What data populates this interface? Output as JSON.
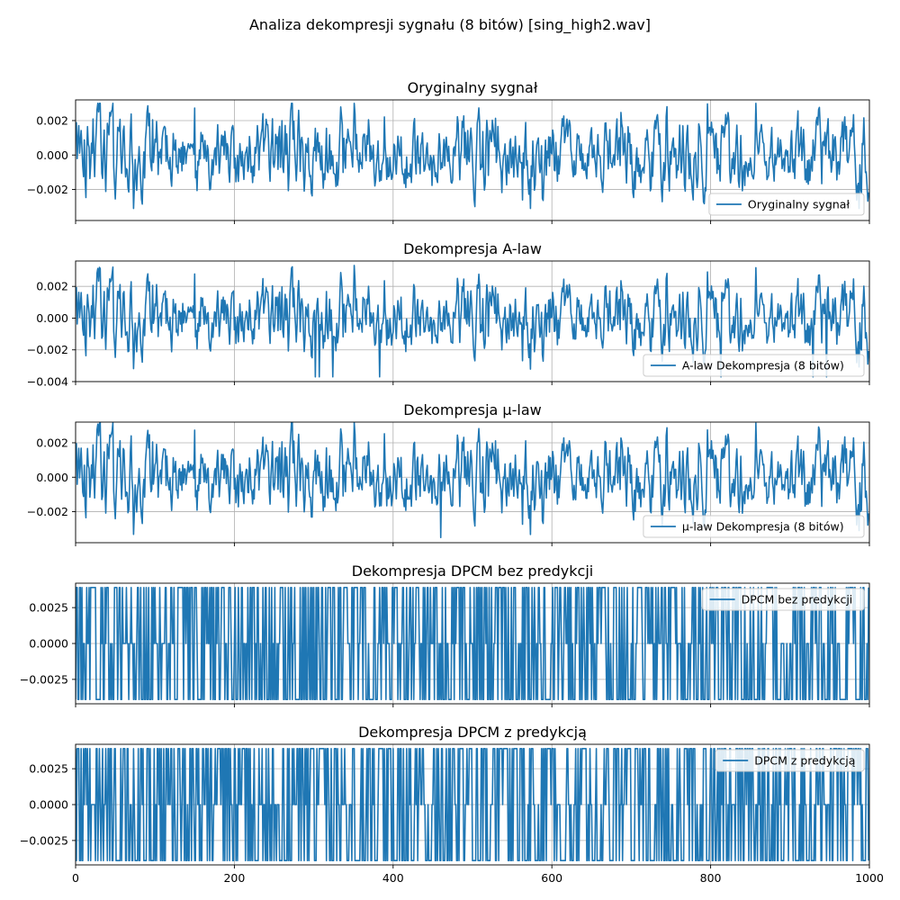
{
  "figure": {
    "title": "Analiza dekompresji sygnału (8 bitów) [sing_high2.wav]"
  },
  "chart_data": [
    {
      "type": "line",
      "title": "Oryginalny sygnał",
      "series": [
        {
          "name": "Oryginalny sygnał",
          "color": "#1f77b4",
          "generator": "signal",
          "variant": "orig"
        }
      ],
      "x_range": [
        0,
        1000
      ],
      "ylim": [
        -0.0038,
        0.0032
      ],
      "yticks": [
        0.002,
        0.0,
        -0.002
      ],
      "ytick_labels": [
        "0.002",
        "0.000",
        "−0.002"
      ],
      "xticks": [
        0,
        200,
        400,
        600,
        800,
        1000
      ],
      "xtick_labels_visible": false,
      "grid": true,
      "legend": "lower-right"
    },
    {
      "type": "line",
      "title": "Dekompresja A-law",
      "series": [
        {
          "name": "A-law Dekompresja (8 bitów)",
          "color": "#1f77b4",
          "generator": "signal",
          "variant": "alaw"
        }
      ],
      "x_range": [
        0,
        1000
      ],
      "ylim": [
        -0.004,
        0.0036
      ],
      "yticks": [
        0.002,
        0.0,
        -0.002,
        -0.004
      ],
      "ytick_labels": [
        "0.002",
        "0.000",
        "−0.002",
        "−0.004"
      ],
      "xticks": [
        0,
        200,
        400,
        600,
        800,
        1000
      ],
      "xtick_labels_visible": false,
      "grid": true,
      "legend": "lower-right"
    },
    {
      "type": "line",
      "title": "Dekompresja μ-law",
      "series": [
        {
          "name": "μ-law Dekompresja (8 bitów)",
          "color": "#1f77b4",
          "generator": "signal",
          "variant": "mulaw"
        }
      ],
      "x_range": [
        0,
        1000
      ],
      "ylim": [
        -0.0038,
        0.0032
      ],
      "yticks": [
        0.002,
        0.0,
        -0.002
      ],
      "ytick_labels": [
        "0.002",
        "0.000",
        "−0.002"
      ],
      "xticks": [
        0,
        200,
        400,
        600,
        800,
        1000
      ],
      "xtick_labels_visible": false,
      "grid": true,
      "legend": "lower-right"
    },
    {
      "type": "line",
      "title": "Dekompresja DPCM bez predykcji",
      "series": [
        {
          "name": "DPCM bez predykcji",
          "color": "#1f77b4",
          "generator": "dpcm",
          "levels": [
            -0.0039,
            0.0,
            0.0039
          ]
        }
      ],
      "x_range": [
        0,
        1000
      ],
      "ylim": [
        -0.0042,
        0.0042
      ],
      "yticks": [
        0.0025,
        0.0,
        -0.0025
      ],
      "ytick_labels": [
        "0.0025",
        "0.0000",
        "−0.0025"
      ],
      "xticks": [
        0,
        200,
        400,
        600,
        800,
        1000
      ],
      "xtick_labels_visible": false,
      "grid": true,
      "legend": "upper-right"
    },
    {
      "type": "line",
      "title": "Dekompresja DPCM z predykcją",
      "series": [
        {
          "name": "DPCM z predykcją",
          "color": "#1f77b4",
          "generator": "dpcm",
          "levels": [
            -0.0039,
            0.0,
            0.0039
          ]
        }
      ],
      "x_range": [
        0,
        1000
      ],
      "ylim": [
        -0.0042,
        0.0042
      ],
      "yticks": [
        0.0025,
        0.0,
        -0.0025
      ],
      "ytick_labels": [
        "0.0025",
        "0.0000",
        "−0.0025"
      ],
      "xticks": [
        0,
        200,
        400,
        600,
        800,
        1000
      ],
      "xtick_labels": [
        "0",
        "200",
        "400",
        "600",
        "800",
        "1000"
      ],
      "xtick_labels_visible": true,
      "grid": true,
      "legend": "upper-right"
    }
  ]
}
